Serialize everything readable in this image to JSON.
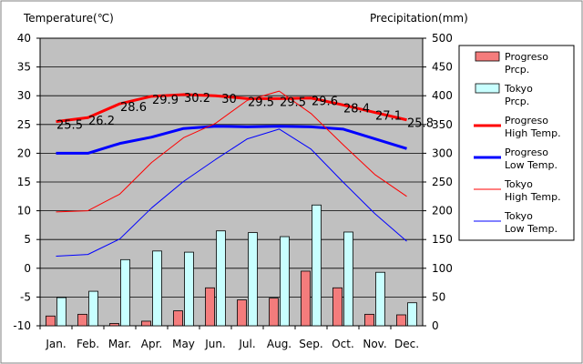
{
  "chart_data": {
    "type": "bar",
    "left_axis_title": "Temperature(℃)",
    "right_axis_title": "Precipitation(mm)",
    "categories": [
      "Jan.",
      "Feb.",
      "Mar.",
      "Apr.",
      "May",
      "Jun.",
      "Jul.",
      "Aug.",
      "Sep.",
      "Oct.",
      "Nov.",
      "Dec."
    ],
    "y_left": {
      "min": -10,
      "max": 40,
      "ticks": [
        -10,
        -5,
        0,
        5,
        10,
        15,
        20,
        25,
        30,
        35,
        40
      ]
    },
    "y_right": {
      "min": 0,
      "max": 500,
      "ticks": [
        0,
        50,
        100,
        150,
        200,
        250,
        300,
        350,
        400,
        450,
        500
      ]
    },
    "grid": true,
    "legend_position": "right",
    "bars": [
      {
        "name": "Progreso Prcp.",
        "legend_lines": [
          "Progreso",
          "Prcp."
        ],
        "color": "#f47c7c",
        "values": [
          17,
          20,
          4,
          8,
          26,
          66,
          45,
          48,
          95,
          66,
          20,
          19
        ]
      },
      {
        "name": "Tokyo Prcp.",
        "legend_lines": [
          "Tokyo",
          "Prcp."
        ],
        "color": "#c8ffff",
        "values": [
          49,
          60,
          115,
          130,
          128,
          165,
          162,
          155,
          210,
          163,
          93,
          40
        ]
      }
    ],
    "lines": [
      {
        "name": "Progreso High Temp.",
        "legend_lines": [
          "Progreso",
          "High Temp."
        ],
        "color": "#ff0000",
        "width": 3,
        "values": [
          25.5,
          26.2,
          28.6,
          29.9,
          30.2,
          30.0,
          29.5,
          29.5,
          29.6,
          28.4,
          27.1,
          25.8
        ]
      },
      {
        "name": "Progreso Low Temp.",
        "legend_lines": [
          "Progreso",
          "Low Temp."
        ],
        "color": "#0000ff",
        "width": 3,
        "values": [
          20.0,
          20.0,
          21.7,
          22.8,
          24.3,
          24.7,
          24.6,
          24.7,
          24.6,
          24.2,
          22.5,
          20.8
        ]
      },
      {
        "name": "Tokyo High Temp.",
        "legend_lines": [
          "Tokyo",
          "High Temp."
        ],
        "color": "#ff0000",
        "width": 1,
        "values": [
          9.8,
          10.0,
          12.9,
          18.4,
          22.7,
          25.2,
          29.2,
          30.8,
          26.9,
          21.5,
          16.3,
          12.5
        ]
      },
      {
        "name": "Tokyo Low Temp.",
        "legend_lines": [
          "Tokyo",
          "Low Temp."
        ],
        "color": "#0000ff",
        "width": 1,
        "values": [
          2.1,
          2.4,
          5.1,
          10.5,
          15.1,
          18.9,
          22.5,
          24.2,
          20.7,
          15.0,
          9.5,
          4.7
        ]
      }
    ],
    "data_labels": {
      "series": "Progreso High Temp.",
      "texts": [
        "25.5",
        "26.2",
        "28.6",
        "29.9",
        "30.2",
        "30",
        "29.5",
        "29.5",
        "29.6",
        "28.4",
        "27.1",
        "25.8"
      ]
    }
  }
}
